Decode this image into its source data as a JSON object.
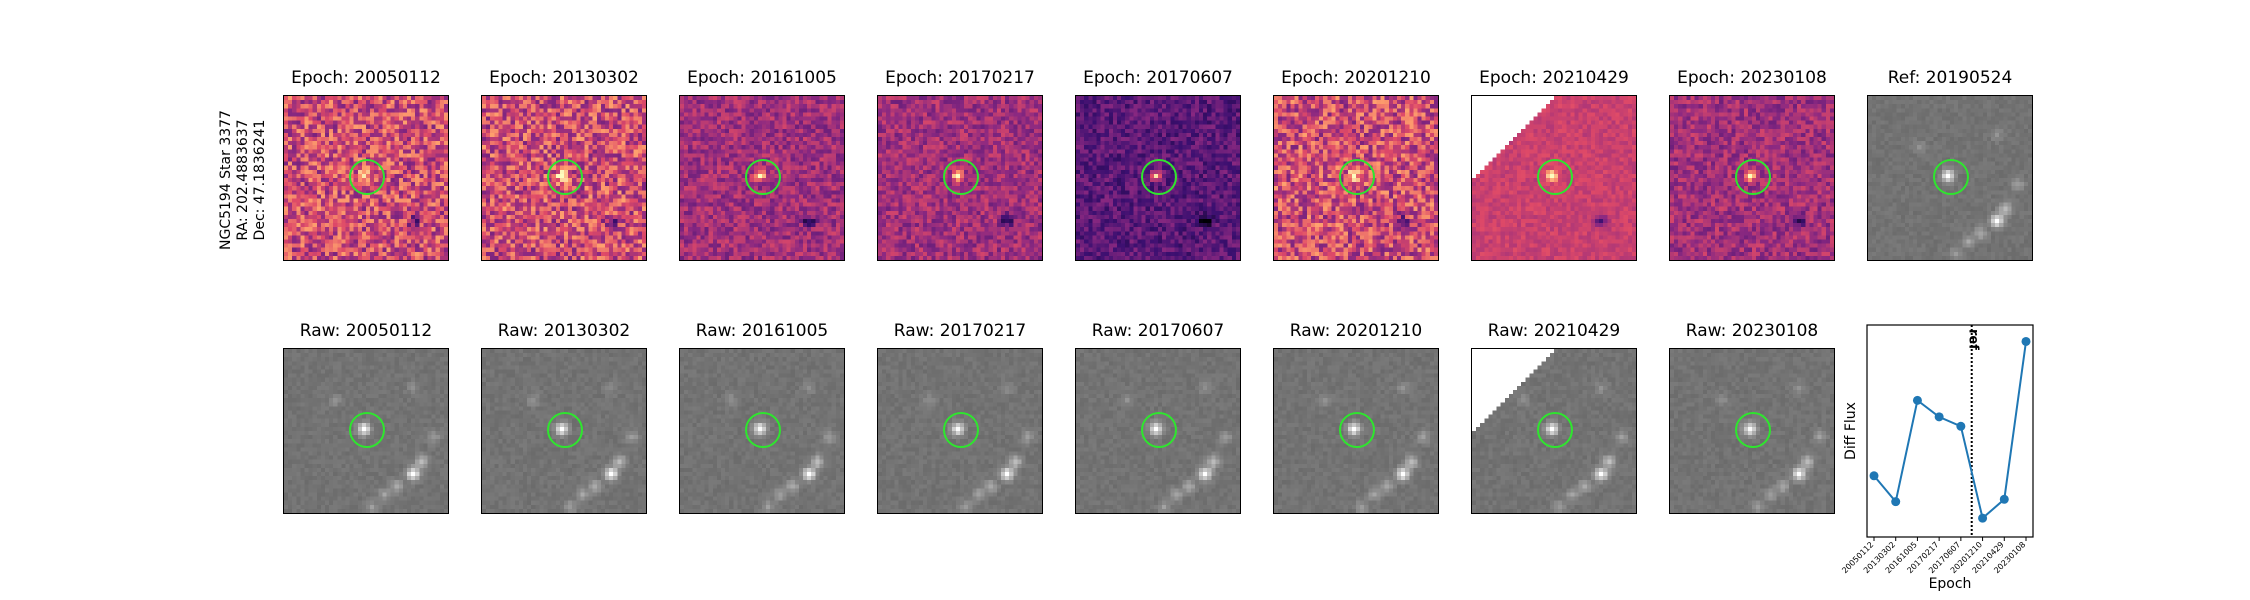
{
  "source_info": {
    "line1": "NGC5194 Star 3377",
    "line2": "RA: 202.4883637",
    "line3": "Dec: 47.1836241"
  },
  "diff_panels": [
    {
      "title": "Epoch: 20050112",
      "style": "diff-noisy"
    },
    {
      "title": "Epoch: 20130302",
      "style": "diff-noisy"
    },
    {
      "title": "Epoch: 20161005",
      "style": "diff-smooth"
    },
    {
      "title": "Epoch: 20170217",
      "style": "diff-smooth"
    },
    {
      "title": "Epoch: 20170607",
      "style": "diff-dark"
    },
    {
      "title": "Epoch: 20201210",
      "style": "diff-noisy"
    },
    {
      "title": "Epoch: 20210429",
      "style": "diff-masked"
    },
    {
      "title": "Epoch: 20230108",
      "style": "diff-smooth"
    },
    {
      "title": "Ref: 20190524",
      "style": "raw"
    }
  ],
  "raw_panels": [
    {
      "title": "Raw: 20050112",
      "style": "raw"
    },
    {
      "title": "Raw: 20130302",
      "style": "raw"
    },
    {
      "title": "Raw: 20161005",
      "style": "raw"
    },
    {
      "title": "Raw: 20170217",
      "style": "raw"
    },
    {
      "title": "Raw: 20170607",
      "style": "raw"
    },
    {
      "title": "Raw: 20201210",
      "style": "raw"
    },
    {
      "title": "Raw: 20210429",
      "style": "raw-masked"
    },
    {
      "title": "Raw: 20230108",
      "style": "raw"
    }
  ],
  "chart_data": {
    "type": "line",
    "xlabel": "Epoch",
    "ylabel": "Diff Flux",
    "categories": [
      "20050112",
      "20130302",
      "20161005",
      "20170217",
      "20170607",
      "20201210",
      "20210429",
      "20230108"
    ],
    "values": [
      0.31,
      0.2,
      0.63,
      0.56,
      0.52,
      0.13,
      0.21,
      0.88
    ],
    "ylim": [
      0.05,
      0.95
    ],
    "ref_index": 4.5,
    "ref_label": "ref",
    "line_color": "#1f77b4"
  },
  "colors": {
    "ring": "#2ee62e",
    "series": "#1f77b4"
  }
}
